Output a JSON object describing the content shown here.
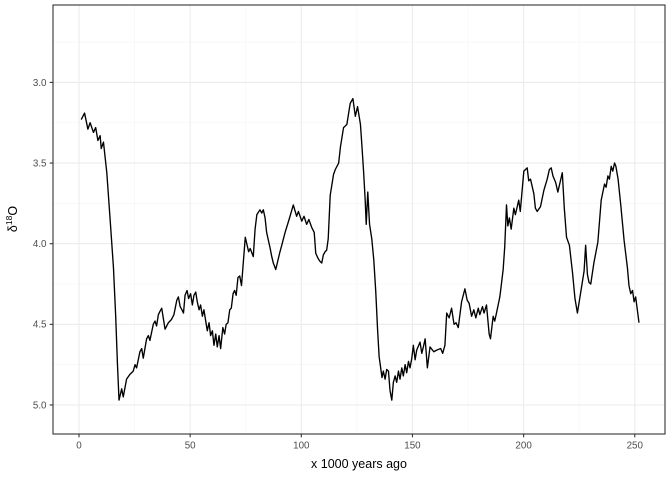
{
  "chart_data": {
    "type": "line",
    "title": "",
    "xlabel": "x 1000 years ago",
    "ylabel": {
      "delta": "δ",
      "sup": "18",
      "element": "O"
    },
    "x_ticks": [
      0,
      50,
      100,
      150,
      200,
      250
    ],
    "x_tick_labels": [
      "0",
      "50",
      "100",
      "150",
      "200",
      "250"
    ],
    "x_minor_ticks": [
      25,
      75,
      125,
      175,
      225
    ],
    "y_ticks": [
      3.0,
      3.5,
      4.0,
      4.5,
      5.0
    ],
    "y_tick_labels": [
      "3.0",
      "3.5",
      "4.0",
      "4.5",
      "5.0"
    ],
    "y_minor_ticks": [
      2.75,
      3.25,
      3.75,
      4.25,
      4.75
    ],
    "x_domain": [
      -11.7,
      263.6
    ],
    "y_domain": [
      2.52,
      5.18
    ],
    "y_axis_reversed": true,
    "grid": true,
    "legend": "none",
    "colors": {
      "line": "#000000",
      "panel_background": "#ffffff",
      "panel_border": "#333333",
      "grid_major": "#ebebeb",
      "grid_minor": "#f6f6f6",
      "tick": "#333333",
      "tick_label": "#4d4d4d",
      "axis_title": "#000000"
    },
    "series": [
      {
        "name": "d18O",
        "points": [
          [
            1,
            3.23
          ],
          [
            2.5,
            3.19
          ],
          [
            4,
            3.29
          ],
          [
            5,
            3.25
          ],
          [
            6.5,
            3.31
          ],
          [
            7.5,
            3.28
          ],
          [
            8.5,
            3.36
          ],
          [
            9.5,
            3.33
          ],
          [
            10,
            3.41
          ],
          [
            11,
            3.37
          ],
          [
            12.5,
            3.56
          ],
          [
            14,
            3.85
          ],
          [
            15.5,
            4.15
          ],
          [
            16.5,
            4.45
          ],
          [
            17.3,
            4.75
          ],
          [
            18,
            4.97
          ],
          [
            19.2,
            4.9
          ],
          [
            19.9,
            4.95
          ],
          [
            21.4,
            4.84
          ],
          [
            22.9,
            4.81
          ],
          [
            24.4,
            4.79
          ],
          [
            25.2,
            4.75
          ],
          [
            25.9,
            4.77
          ],
          [
            27.4,
            4.67
          ],
          [
            28.2,
            4.65
          ],
          [
            28.9,
            4.71
          ],
          [
            30.4,
            4.59
          ],
          [
            31.2,
            4.57
          ],
          [
            31.9,
            4.6
          ],
          [
            33.4,
            4.5
          ],
          [
            34.2,
            4.48
          ],
          [
            34.9,
            4.51
          ],
          [
            35.7,
            4.44
          ],
          [
            36.4,
            4.42
          ],
          [
            37.2,
            4.4
          ],
          [
            37.9,
            4.46
          ],
          [
            38.7,
            4.53
          ],
          [
            40.2,
            4.49
          ],
          [
            41.6,
            4.47
          ],
          [
            42.7,
            4.44
          ],
          [
            44,
            4.35
          ],
          [
            44.7,
            4.33
          ],
          [
            45.5,
            4.39
          ],
          [
            46.3,
            4.41
          ],
          [
            47,
            4.43
          ],
          [
            47.7,
            4.32
          ],
          [
            48.6,
            4.29
          ],
          [
            49.3,
            4.34
          ],
          [
            50.2,
            4.31
          ],
          [
            51,
            4.38
          ],
          [
            51.7,
            4.32
          ],
          [
            52.5,
            4.3
          ],
          [
            53.2,
            4.36
          ],
          [
            54,
            4.41
          ],
          [
            54.7,
            4.38
          ],
          [
            55.5,
            4.45
          ],
          [
            56.2,
            4.41
          ],
          [
            57,
            4.48
          ],
          [
            57.7,
            4.54
          ],
          [
            58.5,
            4.49
          ],
          [
            59.2,
            4.57
          ],
          [
            60,
            4.54
          ],
          [
            60.7,
            4.63
          ],
          [
            61.5,
            4.56
          ],
          [
            62.2,
            4.64
          ],
          [
            63,
            4.57
          ],
          [
            63.7,
            4.65
          ],
          [
            64.7,
            4.52
          ],
          [
            65.5,
            4.56
          ],
          [
            66.2,
            4.5
          ],
          [
            67,
            4.49
          ],
          [
            67.8,
            4.41
          ],
          [
            68.5,
            4.4
          ],
          [
            69.3,
            4.31
          ],
          [
            70,
            4.29
          ],
          [
            70.7,
            4.32
          ],
          [
            71.5,
            4.21
          ],
          [
            72.3,
            4.2
          ],
          [
            73.1,
            4.26
          ],
          [
            74,
            4.1
          ],
          [
            74.8,
            3.96
          ],
          [
            76.3,
            4.05
          ],
          [
            77,
            4.03
          ],
          [
            78.4,
            4.08
          ],
          [
            79.2,
            3.91
          ],
          [
            80,
            3.82
          ],
          [
            81.4,
            3.79
          ],
          [
            82.2,
            3.81
          ],
          [
            82.9,
            3.79
          ],
          [
            83.7,
            3.84
          ],
          [
            84.4,
            3.93
          ],
          [
            86,
            4.03
          ],
          [
            86.7,
            4.08
          ],
          [
            87.4,
            4.12
          ],
          [
            88.5,
            4.16
          ],
          [
            90.4,
            4.05
          ],
          [
            91.2,
            4.01
          ],
          [
            92.7,
            3.93
          ],
          [
            94.5,
            3.85
          ],
          [
            96.4,
            3.76
          ],
          [
            97.9,
            3.83
          ],
          [
            98.7,
            3.8
          ],
          [
            100.2,
            3.86
          ],
          [
            101.2,
            3.83
          ],
          [
            102.4,
            3.88
          ],
          [
            103.4,
            3.85
          ],
          [
            104.7,
            3.9
          ],
          [
            105.8,
            3.93
          ],
          [
            106.5,
            4.06
          ],
          [
            107.5,
            4.09
          ],
          [
            108.4,
            4.11
          ],
          [
            109.2,
            4.12
          ],
          [
            109.9,
            4.07
          ],
          [
            110.7,
            4.05
          ],
          [
            111.4,
            4.04
          ],
          [
            112.1,
            3.97
          ],
          [
            113,
            3.7
          ],
          [
            114.5,
            3.57
          ],
          [
            115.3,
            3.54
          ],
          [
            116.8,
            3.5
          ],
          [
            117.6,
            3.4
          ],
          [
            119,
            3.28
          ],
          [
            119.8,
            3.27
          ],
          [
            120.5,
            3.26
          ],
          [
            121.3,
            3.19
          ],
          [
            122,
            3.13
          ],
          [
            123.2,
            3.1
          ],
          [
            124.3,
            3.21
          ],
          [
            125.3,
            3.15
          ],
          [
            126.6,
            3.26
          ],
          [
            127.3,
            3.4
          ],
          [
            128,
            3.55
          ],
          [
            128.7,
            3.72
          ],
          [
            129.2,
            3.88
          ],
          [
            129.9,
            3.68
          ],
          [
            130.7,
            3.88
          ],
          [
            131.7,
            3.97
          ],
          [
            132.6,
            4.1
          ],
          [
            133.5,
            4.3
          ],
          [
            134.3,
            4.53
          ],
          [
            135,
            4.7
          ],
          [
            135.8,
            4.78
          ],
          [
            136.3,
            4.83
          ],
          [
            136.9,
            4.79
          ],
          [
            137.7,
            4.84
          ],
          [
            138.4,
            4.78
          ],
          [
            139.2,
            4.79
          ],
          [
            139.9,
            4.91
          ],
          [
            140.7,
            4.97
          ],
          [
            141.4,
            4.86
          ],
          [
            142.2,
            4.82
          ],
          [
            142.9,
            4.86
          ],
          [
            143.7,
            4.79
          ],
          [
            144.4,
            4.84
          ],
          [
            145.2,
            4.77
          ],
          [
            145.9,
            4.82
          ],
          [
            146.7,
            4.75
          ],
          [
            147.4,
            4.8
          ],
          [
            148.2,
            4.73
          ],
          [
            148.9,
            4.77
          ],
          [
            149.7,
            4.71
          ],
          [
            150.4,
            4.63
          ],
          [
            151.2,
            4.72
          ],
          [
            151.9,
            4.66
          ],
          [
            153.4,
            4.61
          ],
          [
            154.2,
            4.68
          ],
          [
            154.9,
            4.64
          ],
          [
            155.7,
            4.59
          ],
          [
            156.7,
            4.77
          ],
          [
            157.9,
            4.64
          ],
          [
            159.6,
            4.67
          ],
          [
            160.9,
            4.66
          ],
          [
            162.7,
            4.65
          ],
          [
            163.6,
            4.68
          ],
          [
            164.6,
            4.63
          ],
          [
            165.4,
            4.43
          ],
          [
            166.5,
            4.46
          ],
          [
            167.6,
            4.4
          ],
          [
            168.7,
            4.5
          ],
          [
            169.6,
            4.49
          ],
          [
            170.6,
            4.52
          ],
          [
            172.1,
            4.36
          ],
          [
            173.6,
            4.28
          ],
          [
            174.6,
            4.35
          ],
          [
            175.5,
            4.37
          ],
          [
            176.6,
            4.45
          ],
          [
            177.6,
            4.41
          ],
          [
            178.5,
            4.46
          ],
          [
            179.6,
            4.4
          ],
          [
            180.3,
            4.44
          ],
          [
            181.5,
            4.39
          ],
          [
            182.2,
            4.43
          ],
          [
            183.3,
            4.38
          ],
          [
            184.5,
            4.56
          ],
          [
            185.1,
            4.59
          ],
          [
            186.3,
            4.45
          ],
          [
            187,
            4.48
          ],
          [
            187.8,
            4.43
          ],
          [
            189.3,
            4.33
          ],
          [
            190.1,
            4.24
          ],
          [
            190.8,
            4.16
          ],
          [
            191.5,
            4.02
          ],
          [
            192.3,
            3.76
          ],
          [
            192.9,
            3.89
          ],
          [
            193.6,
            3.84
          ],
          [
            194.4,
            3.91
          ],
          [
            195.6,
            3.78
          ],
          [
            196.3,
            3.82
          ],
          [
            197.8,
            3.73
          ],
          [
            198.5,
            3.8
          ],
          [
            200.1,
            3.55
          ],
          [
            201.6,
            3.53
          ],
          [
            202.3,
            3.61
          ],
          [
            203.1,
            3.6
          ],
          [
            204.6,
            3.69
          ],
          [
            205.3,
            3.78
          ],
          [
            206.1,
            3.8
          ],
          [
            207.6,
            3.77
          ],
          [
            209.1,
            3.67
          ],
          [
            210.6,
            3.6
          ],
          [
            211.6,
            3.54
          ],
          [
            212.4,
            3.53
          ],
          [
            213.2,
            3.58
          ],
          [
            214.4,
            3.62
          ],
          [
            215.4,
            3.68
          ],
          [
            216.4,
            3.62
          ],
          [
            217.4,
            3.56
          ],
          [
            218.3,
            3.78
          ],
          [
            219.3,
            3.96
          ],
          [
            220.6,
            4.01
          ],
          [
            222,
            4.18
          ],
          [
            223.1,
            4.34
          ],
          [
            224.2,
            4.43
          ],
          [
            225.7,
            4.3
          ],
          [
            227.2,
            4.17
          ],
          [
            227.9,
            4.01
          ],
          [
            228.7,
            4.19
          ],
          [
            229.4,
            4.24
          ],
          [
            230.2,
            4.25
          ],
          [
            231.6,
            4.12
          ],
          [
            233.4,
            3.99
          ],
          [
            234.9,
            3.73
          ],
          [
            236.4,
            3.63
          ],
          [
            237.1,
            3.65
          ],
          [
            237.9,
            3.58
          ],
          [
            238.6,
            3.6
          ],
          [
            239.4,
            3.52
          ],
          [
            240.1,
            3.55
          ],
          [
            240.9,
            3.5
          ],
          [
            241.5,
            3.52
          ],
          [
            242.5,
            3.6
          ],
          [
            243.7,
            3.76
          ],
          [
            245.2,
            3.98
          ],
          [
            246.7,
            4.15
          ],
          [
            247.4,
            4.26
          ],
          [
            248.2,
            4.31
          ],
          [
            249,
            4.29
          ],
          [
            249.7,
            4.36
          ],
          [
            250.4,
            4.33
          ],
          [
            251.9,
            4.49
          ]
        ]
      }
    ]
  }
}
